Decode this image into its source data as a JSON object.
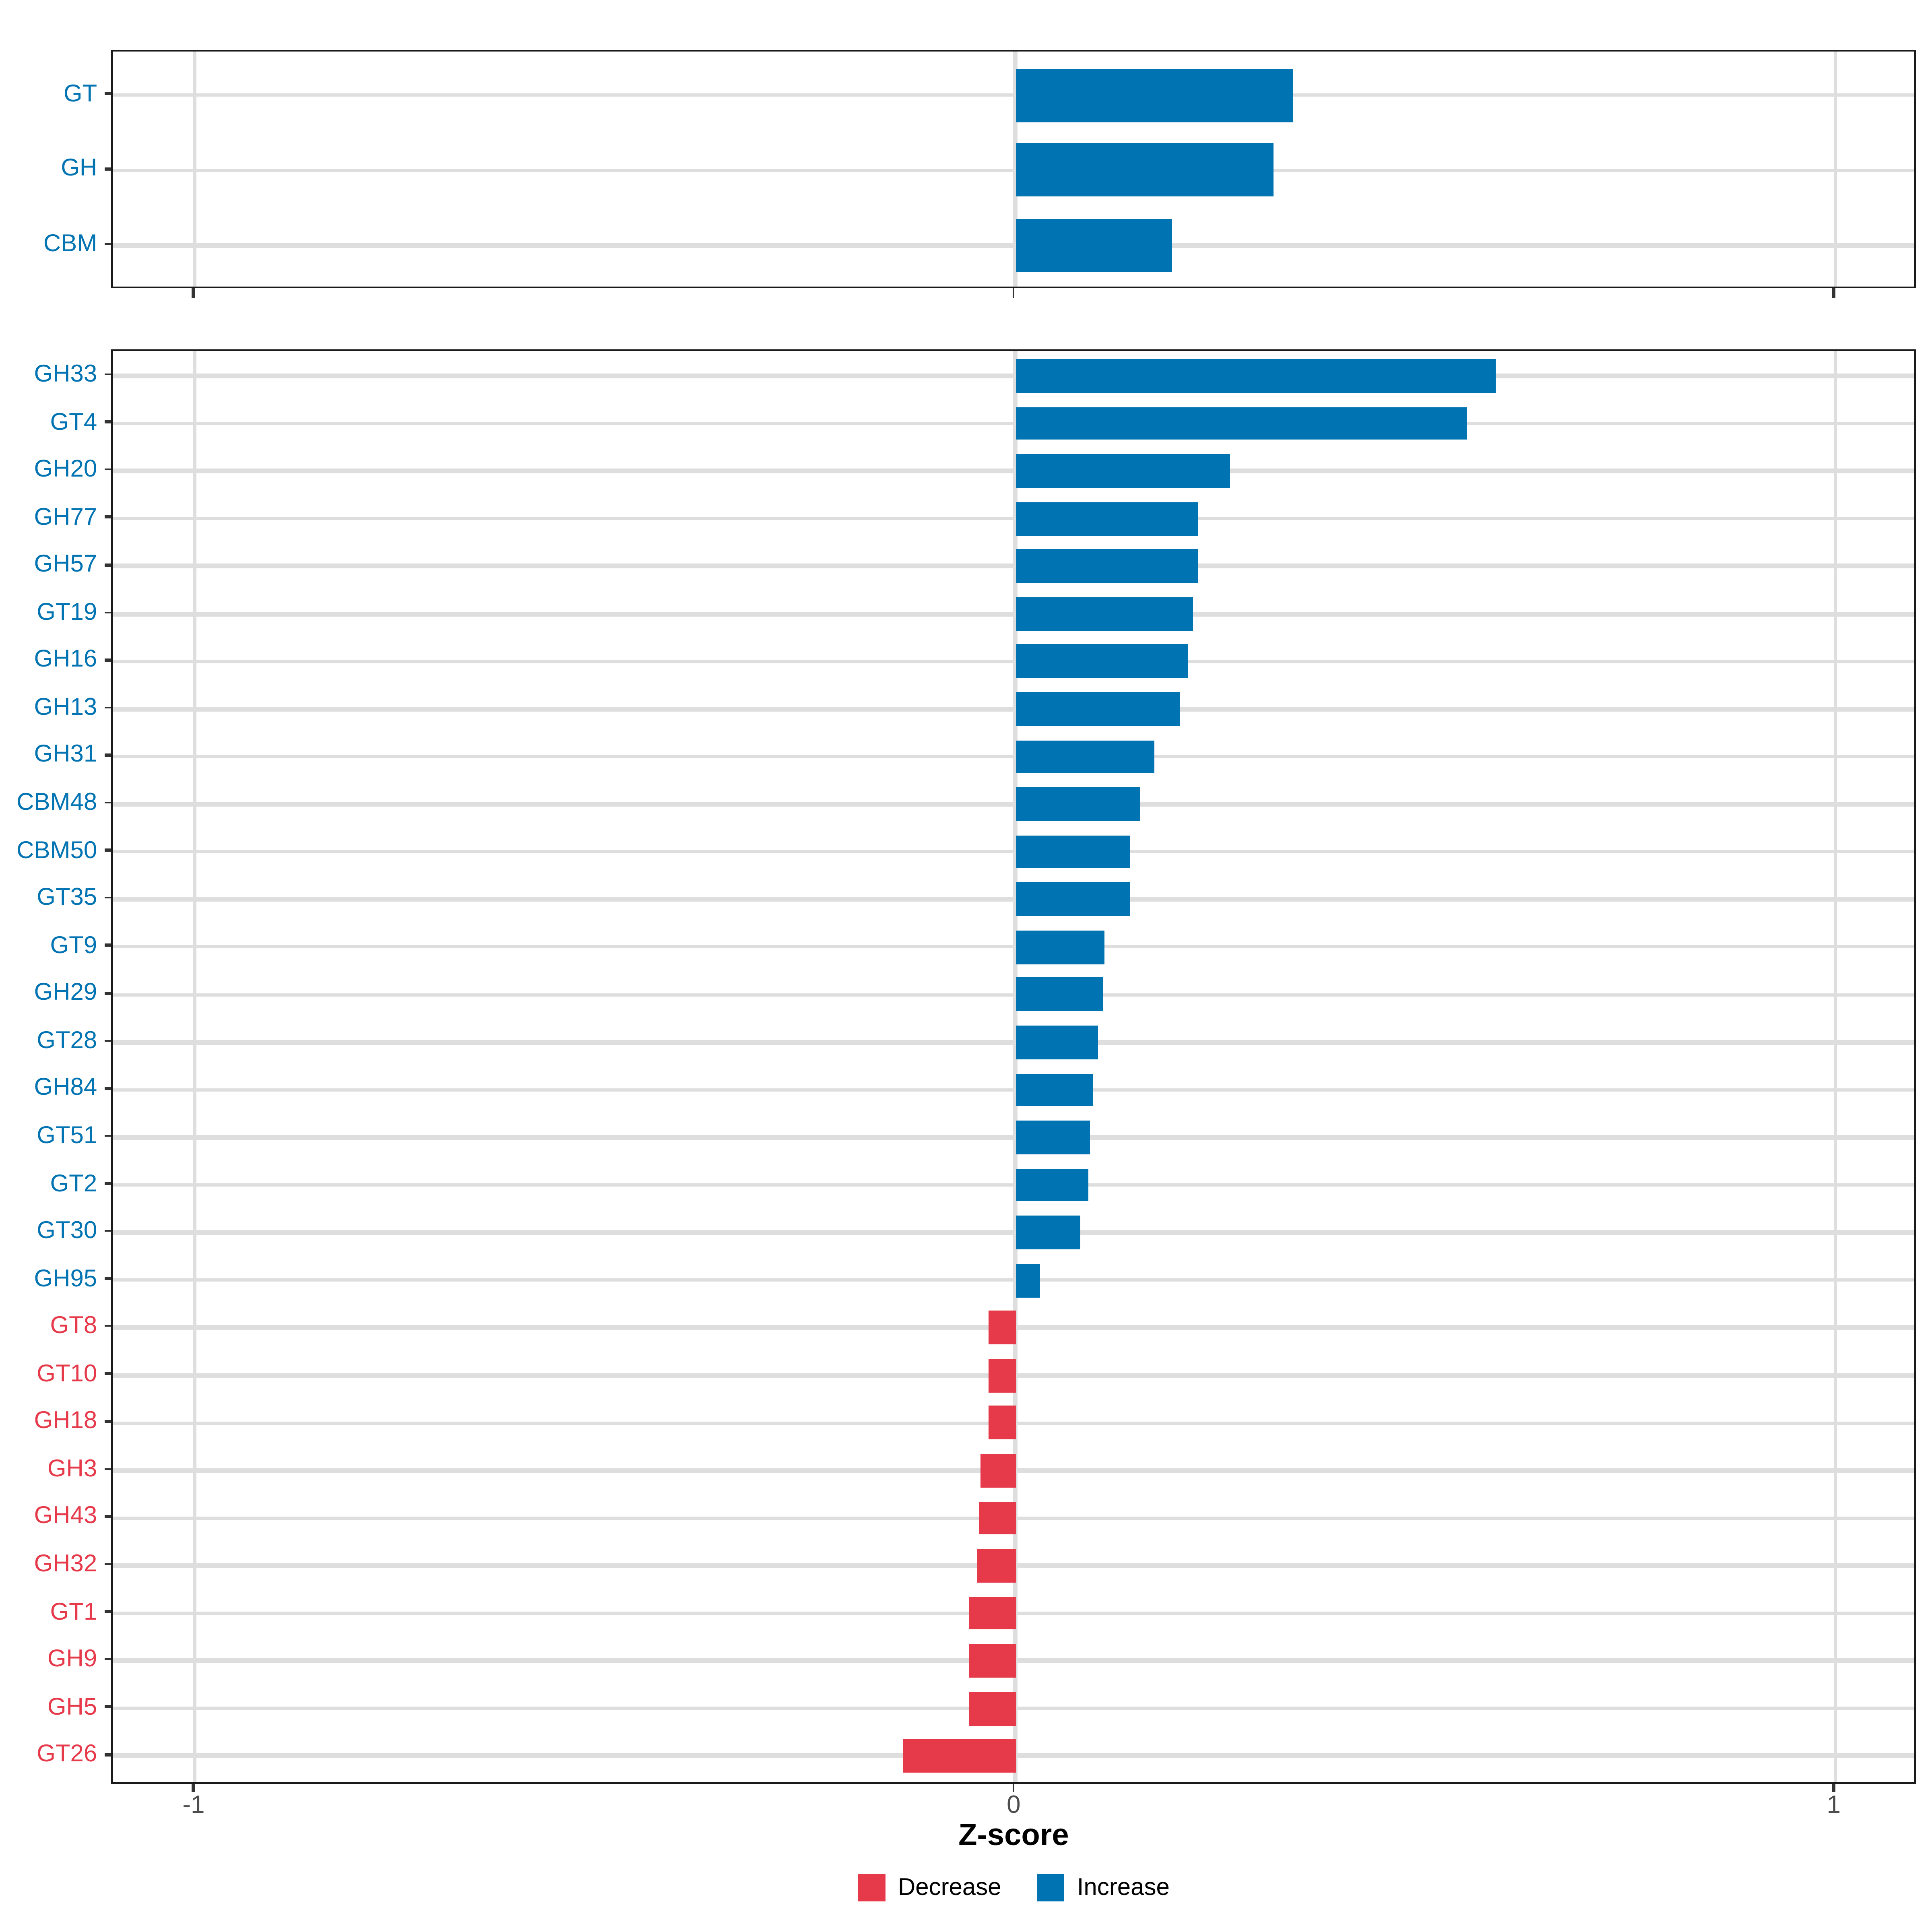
{
  "chart_data": [
    {
      "type": "bar",
      "orientation": "horizontal",
      "panel": "top",
      "categories": [
        "GT",
        "GH",
        "CBM"
      ],
      "values": [
        0.339,
        0.314,
        0.192
      ],
      "xlim": [
        -1.1,
        1.1
      ],
      "grid": true,
      "bar_color_rule": "blue if value >= 0 else red"
    },
    {
      "type": "bar",
      "orientation": "horizontal",
      "panel": "bottom",
      "categories": [
        "GH33",
        "GT4",
        "GH20",
        "GH77",
        "GH57",
        "GT19",
        "GH16",
        "GH13",
        "GH31",
        "CBM48",
        "CBM50",
        "GT35",
        "GT9",
        "GH29",
        "GT28",
        "GH84",
        "GT51",
        "GT2",
        "GT30",
        "GH95",
        "GT8",
        "GT10",
        "GH18",
        "GH3",
        "GH43",
        "GH32",
        "GT1",
        "GH9",
        "GH5",
        "GT26"
      ],
      "values": [
        0.585,
        0.55,
        0.261,
        0.223,
        0.222,
        0.217,
        0.21,
        0.202,
        0.169,
        0.151,
        0.141,
        0.14,
        0.109,
        0.107,
        0.101,
        0.096,
        0.091,
        0.09,
        0.079,
        0.03,
        -0.032,
        -0.032,
        -0.032,
        -0.043,
        -0.045,
        -0.046,
        -0.056,
        -0.056,
        -0.056,
        -0.136
      ],
      "xlim": [
        -1.1,
        1.1
      ],
      "grid": true,
      "bar_color_rule": "blue if value >= 0 else red"
    }
  ],
  "axis": {
    "title": "Z-score",
    "ticks": [
      -1,
      0,
      1
    ],
    "tick_labels": [
      "-1",
      "0",
      "1"
    ]
  },
  "legend": {
    "position": "bottom-center",
    "items": [
      {
        "label": "Decrease",
        "color": "#E6394A"
      },
      {
        "label": "Increase",
        "color": "#0073B2"
      }
    ]
  },
  "colors": {
    "increase": "#0073B2",
    "decrease": "#E6394A",
    "gridline": "#DEDEDE",
    "panel_border": "#1A1A1A",
    "tick_label": "#4D4D4D"
  }
}
